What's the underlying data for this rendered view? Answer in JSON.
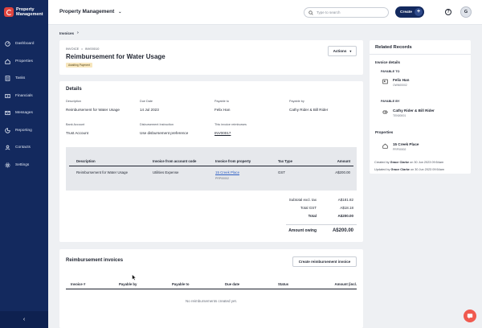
{
  "brand": {
    "line1": "Property",
    "line2": "Management"
  },
  "sidebar": {
    "items": [
      {
        "label": "Dashboard",
        "icon": "dashboard-icon"
      },
      {
        "label": "Properties",
        "icon": "home-icon"
      },
      {
        "label": "Tasks",
        "icon": "tasks-icon"
      },
      {
        "label": "Financials",
        "icon": "financials-icon"
      },
      {
        "label": "Messages",
        "icon": "messages-icon"
      },
      {
        "label": "Reporting",
        "icon": "reporting-icon"
      },
      {
        "label": "Contacts",
        "icon": "contacts-icon"
      },
      {
        "label": "Settings",
        "icon": "settings-icon"
      }
    ],
    "collapse_glyph": "‹"
  },
  "topbar": {
    "app_title": "Property Management",
    "search_placeholder": "Type to search",
    "create_label": "Create",
    "avatar_initial": "G"
  },
  "breadcrumb": {
    "label": "Invoices"
  },
  "invoice": {
    "type": "INVOICE",
    "number": "INV00010",
    "title": "Reimbursement for Water Usage",
    "status": "Awaiting Payment",
    "actions_label": "Actions"
  },
  "details": {
    "heading": "Details",
    "fields": {
      "description": {
        "label": "Description",
        "value": "Reimbursement for Water Usage"
      },
      "due_date": {
        "label": "Due Date",
        "value": "14 Jul 2023"
      },
      "payable_to": {
        "label": "Payable to",
        "value": "Felix Han"
      },
      "payable_by": {
        "label": "Payable by",
        "value": "Cathy Rider & Bill Rider"
      },
      "bank_account": {
        "label": "Bank Account",
        "value": "Trust Account"
      },
      "disbursement": {
        "label": "Disbursement Instruction",
        "value": "Use disbursement preference"
      },
      "reimburses": {
        "label": "This invoice reimburses",
        "value": "INV00017"
      }
    },
    "table": {
      "headers": [
        "Description",
        "Invoice from account code",
        "Invoice from property",
        "Tax Type",
        "Amount"
      ],
      "rows": [
        {
          "description": "Reimbursement for Water Usage",
          "account_code": "Utilities Expense",
          "property": "15 Creek Place",
          "property_code": "PRP00002",
          "tax_type": "GST",
          "amount": "A$200.00"
        }
      ]
    },
    "totals": {
      "subtotal_label": "Subtotal excl. tax",
      "subtotal_value": "A$181.82",
      "gst_label": "Total GST",
      "gst_value": "A$18.18",
      "total_label": "Total",
      "total_value": "A$200.00",
      "owing_label": "Amount owing",
      "owing_value": "A$200.00"
    }
  },
  "reimbursements": {
    "heading": "Reimbursement invoices",
    "create_label": "Create reimbursement invoice",
    "headers": [
      "Invoice #",
      "Payable by",
      "Payable to",
      "Due date",
      "Status",
      "Amount (incl."
    ],
    "empty_text": "No reimbursements created yet."
  },
  "related": {
    "heading": "Related Records",
    "invoice_details_label": "Invoice details",
    "payable_to_label": "PAYABLE TO",
    "payable_to": {
      "name": "Felix Han",
      "code": "OWN00002"
    },
    "payable_by_label": "PAYABLE BY",
    "payable_by": {
      "name": "Cathy Rider & Bill Rider",
      "code": "TEN00001"
    },
    "properties_label": "Properties",
    "property": {
      "name": "15 Creek Place",
      "code": "PRP00002"
    }
  },
  "audit": {
    "created_prefix": "Created by",
    "created_by": "Grace Clarke",
    "created_on": "on 30 Jun 2023 09:54am",
    "updated_prefix": "Updated by",
    "updated_by": "Grace Clarke",
    "updated_on": "on 30 Jun 2023 09:54am"
  },
  "colors": {
    "sidebar": "#13295e",
    "accent": "#e0443e",
    "link": "#2e5fc4",
    "badge": "#f7e6bd"
  }
}
